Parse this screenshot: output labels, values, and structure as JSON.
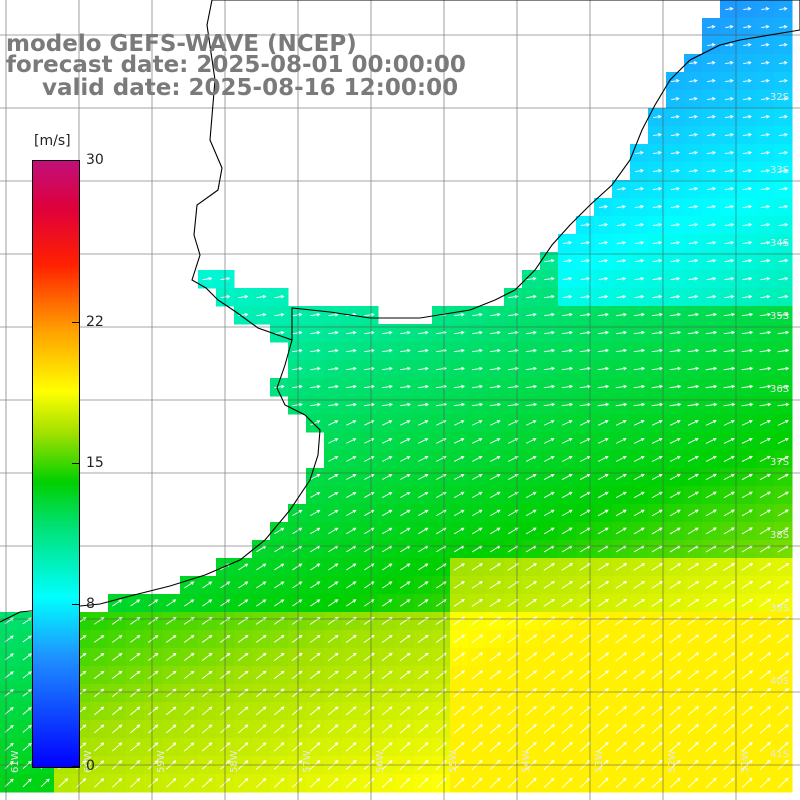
{
  "title": {
    "line1": "modelo GEFS-WAVE (NCEP)",
    "line2": "forecast date: 2025-08-01 00:00:00",
    "line3": "valid date: 2025-08-16 12:00:00"
  },
  "colorbar": {
    "unit": "[m/s]",
    "range": [
      0,
      30
    ],
    "ticks": [
      {
        "value": 30,
        "label": "30"
      },
      {
        "value": 22,
        "label": "22"
      },
      {
        "value": 15,
        "label": "15"
      },
      {
        "value": 8,
        "label": "8"
      },
      {
        "value": 0,
        "label": "0"
      }
    ],
    "colors": [
      "#0000ff",
      "#1e90ff",
      "#00ffff",
      "#00e070",
      "#00d000",
      "#a0e000",
      "#ffff00",
      "#ffa000",
      "#ff2000",
      "#e0003a",
      "#c0107a"
    ]
  },
  "latitude_labels": [
    "32S",
    "33S",
    "34S",
    "35S",
    "36S",
    "37S",
    "38S",
    "39S",
    "40S",
    "41S"
  ],
  "longitude_labels": [
    "61W",
    "60W",
    "59W",
    "58W",
    "57W",
    "56W",
    "55W",
    "54W",
    "53W",
    "52W",
    "51W"
  ],
  "field": {
    "variable": "wind speed",
    "arrow_direction": "toward northeast / east",
    "max_region": "south-east",
    "min_region": "north-east coast and estuary"
  }
}
